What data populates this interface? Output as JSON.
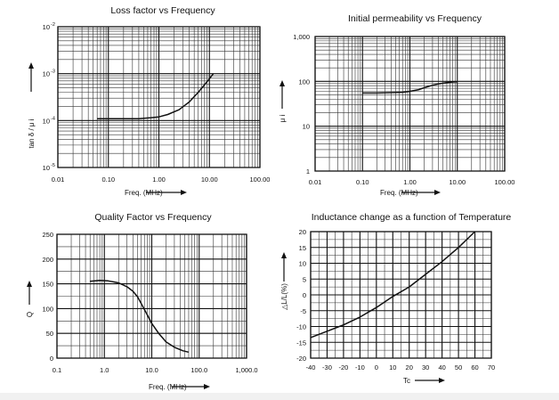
{
  "chart_data": [
    {
      "type": "line",
      "title": "Loss factor vs Frequency",
      "xlabel": "Freq. (MHz)",
      "ylabel": "tan δ / μ i",
      "x_scale": "log",
      "y_scale": "log",
      "xlim": [
        0.01,
        100
      ],
      "ylim": [
        1e-05,
        0.01
      ],
      "x_ticks": [
        {
          "value": 0.01,
          "label": "0.01"
        },
        {
          "value": 0.1,
          "label": "0.10"
        },
        {
          "value": 1,
          "label": "1.00"
        },
        {
          "value": 10,
          "label": "10.00"
        },
        {
          "value": 100,
          "label": "100.00"
        }
      ],
      "y_ticks": [
        {
          "value": 1e-05,
          "base": "10",
          "exp": "-5"
        },
        {
          "value": 0.0001,
          "base": "10",
          "exp": "-4"
        },
        {
          "value": 0.001,
          "base": "10",
          "exp": "-3"
        },
        {
          "value": 0.01,
          "base": "10",
          "exp": "-2"
        }
      ],
      "grid": true,
      "series": [
        {
          "x": [
            0.06,
            0.1,
            0.2,
            0.4,
            0.7,
            1.0,
            1.5,
            2.5,
            4.0,
            6.0,
            8.0,
            10.0,
            12.0
          ],
          "y": [
            0.00011,
            0.00011,
            0.00011,
            0.00011,
            0.000115,
            0.00012,
            0.000135,
            0.00017,
            0.00025,
            0.0004,
            0.00058,
            0.00078,
            0.001
          ]
        }
      ]
    },
    {
      "type": "line",
      "title": "Initial permeability vs Frequency",
      "xlabel": "Freq. (MHz)",
      "ylabel": "μ i",
      "x_scale": "log",
      "y_scale": "log",
      "xlim": [
        0.01,
        100
      ],
      "ylim": [
        1,
        1000
      ],
      "x_ticks": [
        {
          "value": 0.01,
          "label": "0.01"
        },
        {
          "value": 0.1,
          "label": "0.10"
        },
        {
          "value": 1,
          "label": "1.00"
        },
        {
          "value": 10,
          "label": "10.00"
        },
        {
          "value": 100,
          "label": "100.00"
        }
      ],
      "y_ticks": [
        {
          "value": 1,
          "label": "1"
        },
        {
          "value": 10,
          "label": "10"
        },
        {
          "value": 100,
          "label": "100"
        },
        {
          "value": 1000,
          "label": "1,000"
        }
      ],
      "grid": true,
      "series": [
        {
          "x": [
            0.1,
            0.2,
            0.4,
            0.7,
            1.0,
            1.5,
            2.0,
            3.0,
            4.0,
            6.0,
            8.0,
            10.0
          ],
          "y": [
            55,
            55,
            56,
            57,
            60,
            65,
            72,
            82,
            88,
            94,
            97,
            98
          ]
        }
      ]
    },
    {
      "type": "line",
      "title": "Quality Factor vs Frequency",
      "xlabel": "Freq. (MHz)",
      "ylabel": "Q",
      "x_scale": "log",
      "y_scale": "linear",
      "xlim": [
        0.1,
        1000
      ],
      "ylim": [
        0,
        250
      ],
      "x_ticks": [
        {
          "value": 0.1,
          "label": "0.1"
        },
        {
          "value": 1,
          "label": "1.0"
        },
        {
          "value": 10,
          "label": "10.0"
        },
        {
          "value": 100,
          "label": "100.0"
        },
        {
          "value": 1000,
          "label": "1,000.0"
        }
      ],
      "y_ticks": [
        {
          "value": 0,
          "label": "0"
        },
        {
          "value": 50,
          "label": "50"
        },
        {
          "value": 100,
          "label": "100"
        },
        {
          "value": 150,
          "label": "150"
        },
        {
          "value": 200,
          "label": "200"
        },
        {
          "value": 250,
          "label": "250"
        }
      ],
      "grid": true,
      "series": [
        {
          "x": [
            0.5,
            0.8,
            1.2,
            2.0,
            3.0,
            4.0,
            5.0,
            6.0,
            8.0,
            10.0,
            14.0,
            20.0,
            30.0,
            45.0,
            60.0
          ],
          "y": [
            155,
            157,
            156,
            152,
            144,
            135,
            124,
            110,
            88,
            70,
            50,
            33,
            22,
            15,
            12
          ]
        }
      ]
    },
    {
      "type": "line",
      "title": "Inductance change as a function of Temperature",
      "xlabel": "Tc",
      "ylabel": "△L/L(%)",
      "x_scale": "linear",
      "y_scale": "linear",
      "xlim": [
        -40,
        70
      ],
      "ylim": [
        -20,
        20
      ],
      "x_ticks": [
        {
          "value": -40,
          "label": "-40"
        },
        {
          "value": -30,
          "label": "-30"
        },
        {
          "value": -20,
          "label": "-20"
        },
        {
          "value": -10,
          "label": "-10"
        },
        {
          "value": 0,
          "label": "0"
        },
        {
          "value": 10,
          "label": "10"
        },
        {
          "value": 20,
          "label": "20"
        },
        {
          "value": 30,
          "label": "30"
        },
        {
          "value": 40,
          "label": "40"
        },
        {
          "value": 50,
          "label": "50"
        },
        {
          "value": 60,
          "label": "60"
        },
        {
          "value": 70,
          "label": "70"
        }
      ],
      "y_ticks": [
        {
          "value": -20,
          "label": "-20"
        },
        {
          "value": -15,
          "label": "-15"
        },
        {
          "value": -10,
          "label": "-10"
        },
        {
          "value": -5,
          "label": "-5"
        },
        {
          "value": 0,
          "label": "0"
        },
        {
          "value": 5,
          "label": "5"
        },
        {
          "value": 10,
          "label": "10"
        },
        {
          "value": 15,
          "label": "15"
        },
        {
          "value": 20,
          "label": "20"
        }
      ],
      "grid": true,
      "series": [
        {
          "x": [
            -40,
            -30,
            -20,
            -10,
            0,
            10,
            20,
            30,
            40,
            50,
            60
          ],
          "y": [
            -13.5,
            -11.5,
            -9.5,
            -7.0,
            -4.0,
            -0.5,
            2.5,
            6.5,
            10.5,
            15.0,
            20.0
          ]
        }
      ]
    }
  ]
}
